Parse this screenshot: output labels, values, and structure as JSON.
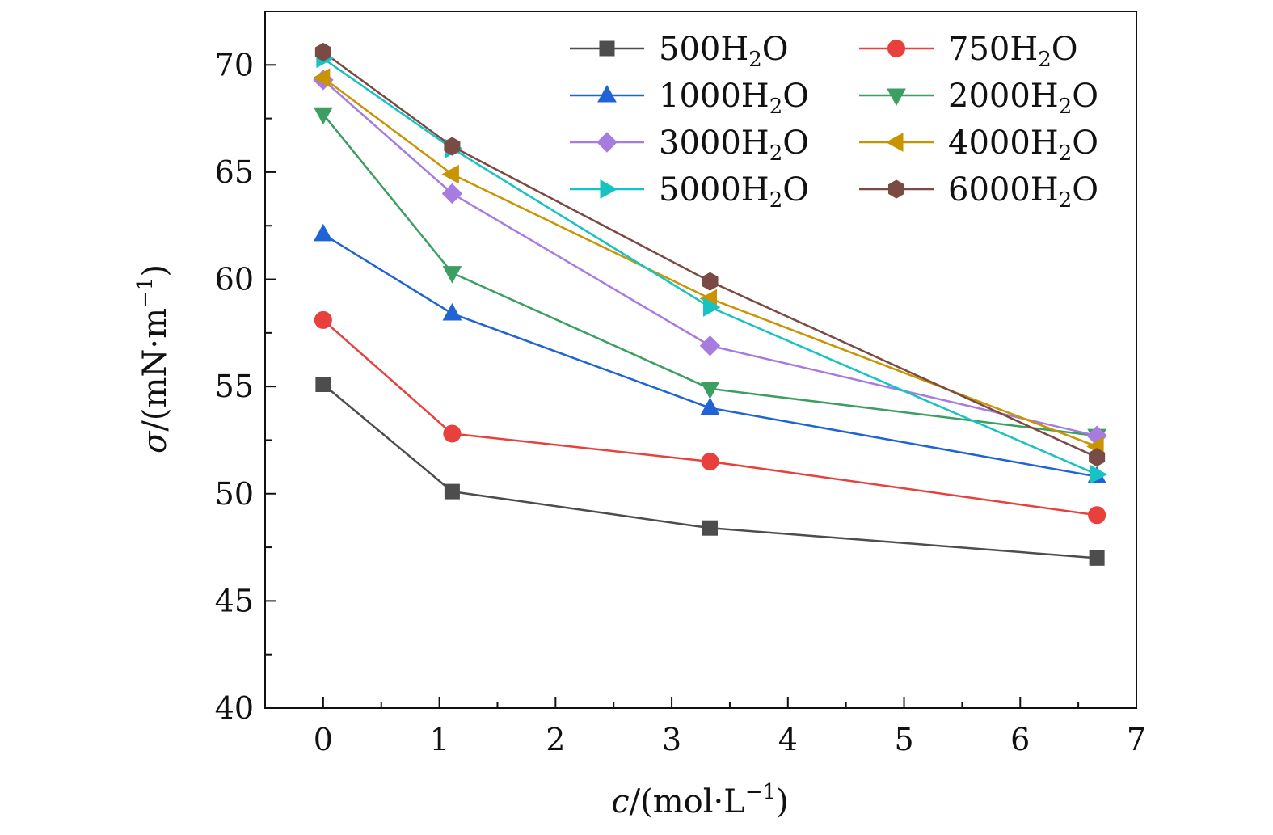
{
  "chart_data": {
    "type": "line",
    "title": "",
    "xlabel": {
      "var": "c",
      "rest": "/(mol·L",
      "sup": "−1",
      "close": ")"
    },
    "ylabel": {
      "var": "σ",
      "rest": "/(mN·m",
      "sup": "−1",
      "close": ")"
    },
    "xlim": [
      -0.5,
      7
    ],
    "ylim": [
      40,
      72.5
    ],
    "xticks": [
      0,
      1,
      2,
      3,
      4,
      5,
      6,
      7
    ],
    "yticks": [
      40,
      45,
      50,
      55,
      60,
      65,
      70
    ],
    "x": [
      0,
      1.11,
      3.33,
      6.66
    ],
    "legend_position": "top-right",
    "grid": false,
    "series": [
      {
        "name": "500H₂O",
        "label_main": "500H",
        "label_sub": "2",
        "label_end": "O",
        "color": "#4d4d4d",
        "marker": "square",
        "values": [
          55.1,
          50.1,
          48.4,
          47.0
        ]
      },
      {
        "name": "750H₂O",
        "label_main": "750H",
        "label_sub": "2",
        "label_end": "O",
        "color": "#e8403c",
        "marker": "circle",
        "values": [
          58.1,
          52.8,
          51.5,
          49.0
        ]
      },
      {
        "name": "1000H₂O",
        "label_main": "1000H",
        "label_sub": "2",
        "label_end": "O",
        "color": "#1f63d4",
        "marker": "triangle-up",
        "values": [
          62.1,
          58.4,
          54.0,
          50.8
        ]
      },
      {
        "name": "2000H₂O",
        "label_main": "2000H",
        "label_sub": "2",
        "label_end": "O",
        "color": "#3d9e61",
        "marker": "triangle-down",
        "values": [
          67.7,
          60.3,
          54.9,
          52.7
        ]
      },
      {
        "name": "3000H₂O",
        "label_main": "3000H",
        "label_sub": "2",
        "label_end": "O",
        "color": "#a77ce0",
        "marker": "diamond",
        "values": [
          69.3,
          64.0,
          56.9,
          52.7
        ]
      },
      {
        "name": "4000H₂O",
        "label_main": "4000H",
        "label_sub": "2",
        "label_end": "O",
        "color": "#c99400",
        "marker": "triangle-left",
        "values": [
          69.4,
          64.9,
          59.1,
          52.2
        ]
      },
      {
        "name": "5000H₂O",
        "label_main": "5000H",
        "label_sub": "2",
        "label_end": "O",
        "color": "#17c2c2",
        "marker": "triangle-right",
        "values": [
          70.3,
          66.1,
          58.7,
          50.9
        ]
      },
      {
        "name": "6000H₂O",
        "label_main": "6000H",
        "label_sub": "2",
        "label_end": "O",
        "color": "#7a4a44",
        "marker": "hexagon",
        "values": [
          70.6,
          66.2,
          59.9,
          51.7
        ]
      }
    ]
  }
}
